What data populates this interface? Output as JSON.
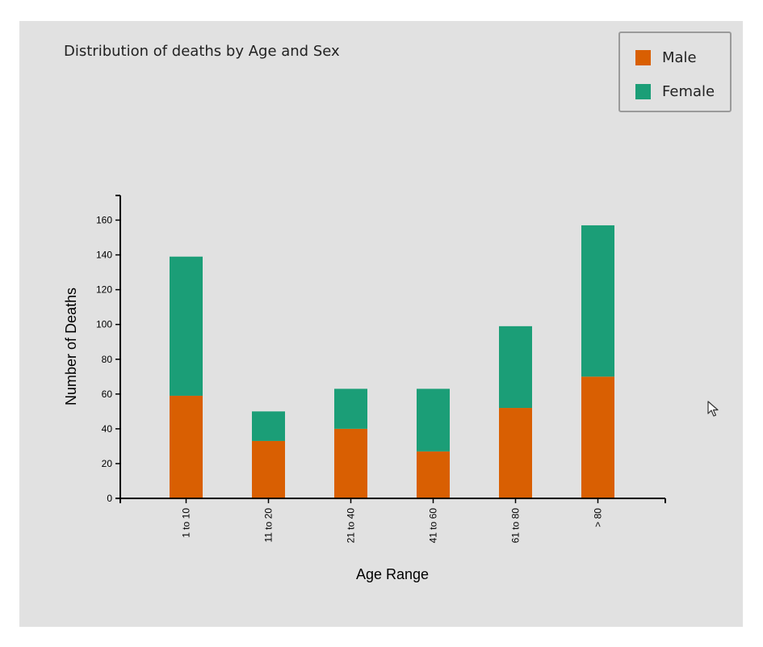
{
  "chart_data": {
    "type": "bar",
    "stacked": true,
    "title": "Distribution of deaths by Age and Sex",
    "xlabel": "Age Range",
    "ylabel": "Number of Deaths",
    "categories": [
      "1 to 10",
      "11 to 20",
      "21 to 40",
      "41 to 60",
      "61 to 80",
      "> 80"
    ],
    "series": [
      {
        "name": "Male",
        "color": "#d95f02",
        "values": [
          59,
          33,
          40,
          27,
          52,
          70
        ]
      },
      {
        "name": "Female",
        "color": "#1b9e77",
        "values": [
          80,
          17,
          23,
          36,
          47,
          87
        ]
      }
    ],
    "ylim": [
      0,
      174
    ],
    "yticks": [
      0,
      20,
      40,
      60,
      80,
      100,
      120,
      140,
      160
    ],
    "grid": false,
    "legend_position": "top-right"
  },
  "window": {
    "background": "#e1e1e1"
  }
}
